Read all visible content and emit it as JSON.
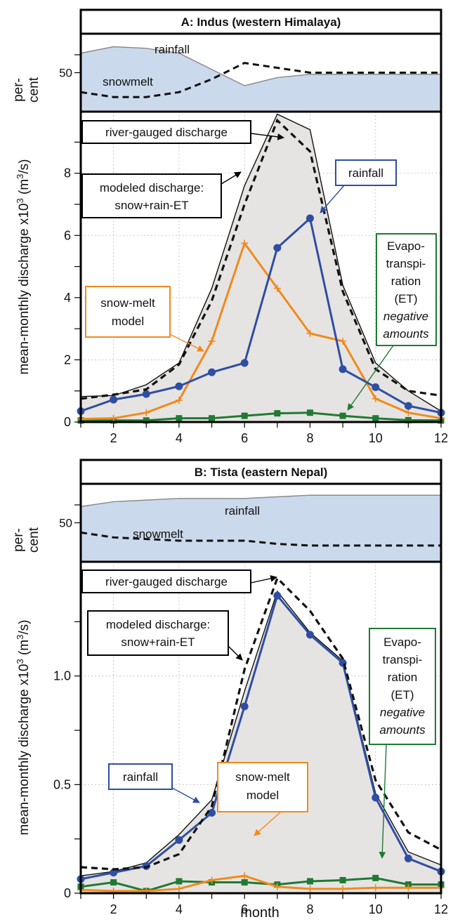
{
  "colors": {
    "rain": "#2f4ea3",
    "snow": "#f08a1c",
    "et": "#1f7a34",
    "shade": "#e6e4e2",
    "pct_fill": "#cbd9ec",
    "pct_line": "#8a8a8a"
  },
  "shared": {
    "xlabel": "month",
    "ylabel_main": "mean-monthly discharge x10",
    "ylabel_sup": "3",
    "ylabel_unit": " (m",
    "ylabel_unit_sup": "3",
    "ylabel_end": "/s)",
    "pct_label_1": "per-",
    "pct_label_2": "cent",
    "pct_tick": "50",
    "x_ticks": [
      "2",
      "4",
      "6",
      "8",
      "10",
      "12"
    ]
  },
  "chart_data": [
    {
      "type": "line",
      "title": "A: Indus (western Himalaya)",
      "x": [
        1,
        2,
        3,
        4,
        5,
        6,
        7,
        8,
        9,
        10,
        11,
        12
      ],
      "xlim": [
        1,
        12
      ],
      "ylim": [
        0,
        9.8
      ],
      "yticks": [
        0,
        2,
        4,
        6,
        8
      ],
      "ytick_labels": [
        "0",
        "2",
        "4",
        "6",
        "8"
      ],
      "series": [
        {
          "name": "river-gauged discharge",
          "values": [
            0.82,
            0.85,
            1.2,
            1.9,
            4.3,
            7.6,
            9.9,
            9.4,
            4.4,
            1.9,
            1.0,
            0.35
          ]
        },
        {
          "name": "modeled discharge: snow+rain-ET",
          "values": [
            0.75,
            0.88,
            1.05,
            1.85,
            3.9,
            7.0,
            9.7,
            8.7,
            4.2,
            1.7,
            1.0,
            0.85
          ]
        },
        {
          "name": "rainfall",
          "values": [
            0.35,
            0.72,
            0.9,
            1.15,
            1.6,
            1.9,
            5.6,
            6.55,
            1.7,
            1.12,
            0.52,
            0.3
          ]
        },
        {
          "name": "snow-melt model",
          "values": [
            0.1,
            0.12,
            0.3,
            0.7,
            2.6,
            5.75,
            4.3,
            2.85,
            2.6,
            0.75,
            0.3,
            0.12
          ]
        },
        {
          "name": "Evapo-transpiration (ET) negative amounts",
          "values": [
            0.05,
            0.05,
            0.05,
            0.12,
            0.12,
            0.2,
            0.28,
            0.3,
            0.2,
            0.12,
            0.06,
            0.05
          ]
        }
      ],
      "percent_panel": {
        "ylim": [
          38,
          62
        ],
        "rainfall_label": "rainfall",
        "snowmelt_label": "snowmelt",
        "rainfall_pct": [
          56,
          58,
          57.5,
          56,
          51,
          46,
          48.5,
          49.5,
          49.5,
          49.5,
          49.5,
          49.5
        ],
        "snowmelt_pct": [
          44,
          42.5,
          42.5,
          44,
          48,
          53,
          51.5,
          50,
          50,
          50,
          50,
          50
        ]
      },
      "annotations": {
        "gauged": "river-gauged discharge",
        "modeled_1": "modeled discharge:",
        "modeled_2": "snow+rain-ET",
        "rain": "rainfall",
        "snow_1": "snow-melt",
        "snow_2": "model",
        "et_1": "Evapo-",
        "et_2": "transpi-",
        "et_3": "ration",
        "et_4": "(ET)",
        "et_5": "negative",
        "et_6": "amounts"
      }
    },
    {
      "type": "line",
      "title": "B: Tista (eastern Nepal)",
      "x": [
        1,
        2,
        3,
        4,
        5,
        6,
        7,
        8,
        9,
        10,
        11,
        12
      ],
      "xlim": [
        1,
        12
      ],
      "ylim": [
        0,
        1.5
      ],
      "yticks": [
        0,
        0.5,
        1.0
      ],
      "ytick_labels": [
        "0",
        "0.5",
        "1.0"
      ],
      "series": [
        {
          "name": "river-gauged discharge",
          "values": [
            0.08,
            0.1,
            0.14,
            0.27,
            0.43,
            0.93,
            1.39,
            1.2,
            1.07,
            0.46,
            0.19,
            0.13
          ]
        },
        {
          "name": "modeled discharge: snow+rain-ET",
          "values": [
            0.12,
            0.11,
            0.12,
            0.18,
            0.4,
            1.03,
            1.45,
            1.3,
            1.08,
            0.52,
            0.28,
            0.2
          ]
        },
        {
          "name": "rainfall",
          "values": [
            0.065,
            0.095,
            0.125,
            0.245,
            0.37,
            0.86,
            1.37,
            1.19,
            1.06,
            0.44,
            0.16,
            0.1
          ]
        },
        {
          "name": "snow-melt model",
          "values": [
            0.015,
            0.01,
            0.01,
            0.02,
            0.06,
            0.08,
            0.03,
            0.02,
            0.02,
            0.025,
            0.025,
            0.025
          ]
        },
        {
          "name": "Evapo-transpiration (ET) negative amounts",
          "values": [
            0.03,
            0.05,
            0.01,
            0.055,
            0.05,
            0.05,
            0.04,
            0.055,
            0.06,
            0.07,
            0.04,
            0.04
          ]
        }
      ],
      "percent_panel": {
        "ylim": [
          38,
          62
        ],
        "rainfall_label": "rainfall",
        "snowmelt_label": "snowmelt",
        "rainfall_pct": [
          55,
          56.5,
          57,
          57.5,
          57.5,
          57.5,
          58,
          58.5,
          58.5,
          58.5,
          58.5,
          58.5
        ],
        "snowmelt_pct": [
          47,
          45.5,
          45,
          44.5,
          44.5,
          44.5,
          43.5,
          43,
          43,
          43,
          43,
          43
        ]
      },
      "annotations": {
        "gauged": "river-gauged discharge",
        "modeled_1": "modeled discharge:",
        "modeled_2": "snow+rain-ET",
        "rain": "rainfall",
        "snow_1": "snow-melt",
        "snow_2": "model",
        "et_1": "Evapo-",
        "et_2": "transpi-",
        "et_3": "ration",
        "et_4": "(ET)",
        "et_5": "negative",
        "et_6": "amounts"
      }
    }
  ]
}
